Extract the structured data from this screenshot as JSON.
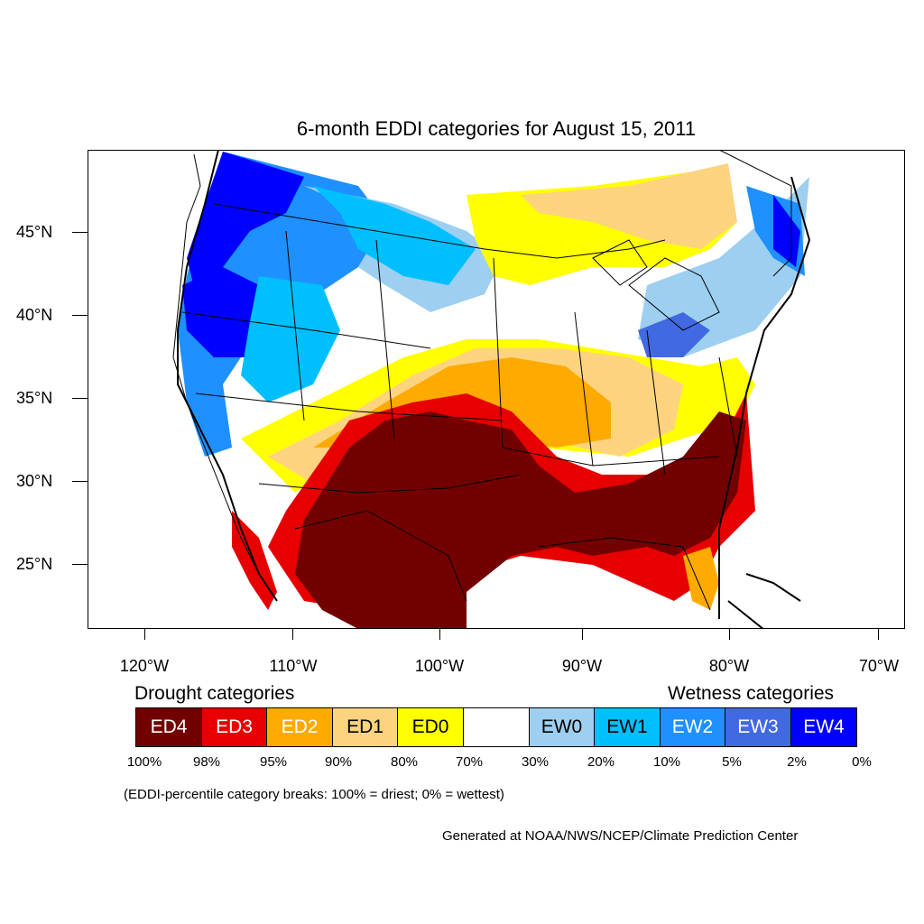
{
  "title": "6-month EDDI categories for August 15, 2011",
  "lat_labels": [
    "45°N",
    "40°N",
    "35°N",
    "30°N",
    "25°N"
  ],
  "lon_labels": [
    "120°W",
    "110°W",
    "100°W",
    "90°W",
    "80°W",
    "70°W"
  ],
  "legend": {
    "drought_heading": "Drought categories",
    "wetness_heading": "Wetness categories",
    "categories": [
      {
        "label": "ED4",
        "color": "#730000",
        "text_color": "#ffffff"
      },
      {
        "label": "ED3",
        "color": "#e60000",
        "text_color": "#ffffff"
      },
      {
        "label": "ED2",
        "color": "#ffaa00",
        "text_color": "#ffffff"
      },
      {
        "label": "ED1",
        "color": "#fcd37f",
        "text_color": "#000000"
      },
      {
        "label": "ED0",
        "color": "#ffff00",
        "text_color": "#000000"
      },
      {
        "label": "",
        "color": "#ffffff",
        "text_color": "#000000"
      },
      {
        "label": "EW0",
        "color": "#9dcff0",
        "text_color": "#000000"
      },
      {
        "label": "EW1",
        "color": "#00bfff",
        "text_color": "#000000"
      },
      {
        "label": "EW2",
        "color": "#1e90ff",
        "text_color": "#ffffff"
      },
      {
        "label": "EW3",
        "color": "#4169e1",
        "text_color": "#ffffff"
      },
      {
        "label": "EW4",
        "color": "#0000ff",
        "text_color": "#ffffff"
      }
    ],
    "breaks": [
      "100%",
      "98%",
      "95%",
      "90%",
      "80%",
      "70%",
      "30%",
      "20%",
      "10%",
      "5%",
      "2%",
      "0%"
    ]
  },
  "note": "(EDDI-percentile category breaks: 100% = driest; 0% = wettest)",
  "credit": "Generated at NOAA/NWS/NCEP/Climate Prediction Center"
}
